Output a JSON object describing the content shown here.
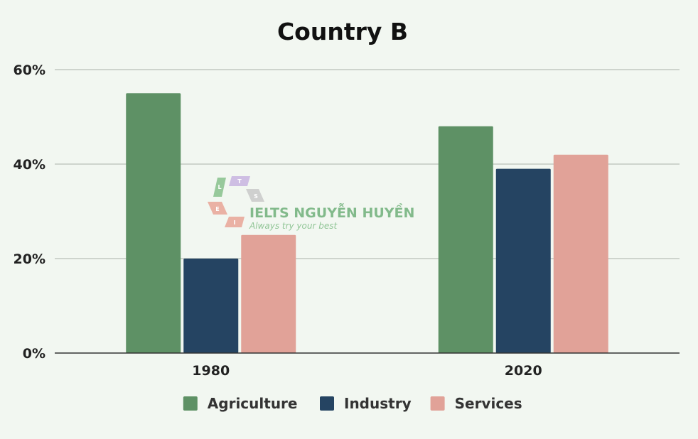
{
  "chart_data": {
    "type": "bar",
    "title": "Country B",
    "categories": [
      "1980",
      "2020"
    ],
    "series": [
      {
        "name": "Agriculture",
        "color": "#5e9165",
        "values": [
          55,
          48
        ]
      },
      {
        "name": "Industry",
        "color": "#254462",
        "values": [
          20,
          39
        ]
      },
      {
        "name": "Services",
        "color": "#e1a298",
        "values": [
          25,
          42
        ]
      }
    ],
    "ylim": [
      0,
      60
    ],
    "yticks": [
      0,
      20,
      40,
      60
    ],
    "ytick_labels": [
      "0%",
      "20%",
      "40%",
      "60%"
    ],
    "grid": true,
    "legend_position": "bottom"
  },
  "watermark": {
    "brand": "IELTS NGUYỄN HUYỀN",
    "slogan": "Always try your best",
    "logo_letters": [
      "L",
      "T",
      "S",
      "E",
      "I"
    ]
  }
}
